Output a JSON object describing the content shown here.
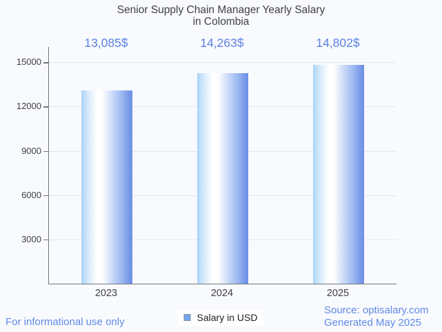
{
  "page": {
    "background": "#f8fafd"
  },
  "title": {
    "line1": "Senior Supply Chain Manager Yearly Salary",
    "line2": "in Colombia"
  },
  "legend": {
    "label": "Salary in USD",
    "marker_color": "#72a6f0"
  },
  "footer": {
    "disclaimer": "For informational use only",
    "source": "Source: optisalary.com",
    "generated": "Generated May 2025"
  },
  "colors": {
    "value_label": "#5b80e1",
    "footer_text": "#6189e8",
    "axis_line": "#73767a",
    "gridline": "#e4e6eb",
    "tick_label": "#3f4043",
    "bar_gradient_left": "#a9d3f8",
    "bar_gradient_middle": "#ffffff",
    "bar_gradient_right": "#6b8fe7"
  },
  "chart_data": {
    "type": "bar",
    "title": "Senior Supply Chain Manager Yearly Salary in Colombia",
    "categories": [
      "2023",
      "2024",
      "2025"
    ],
    "series": [
      {
        "name": "Salary in USD",
        "values": [
          13085,
          14263,
          14802
        ]
      }
    ],
    "value_labels": [
      "13,085$",
      "14,263$",
      "14,802$"
    ],
    "xlabel": "",
    "ylabel": "",
    "ylim": [
      0,
      16040
    ],
    "yticks": [
      3000,
      6000,
      9000,
      12000,
      15000
    ],
    "ytick_labels": [
      "3000",
      "6000",
      "9000",
      "12000",
      "15000"
    ],
    "grid": true,
    "legend_position": "bottom",
    "bar_orientation": "vertical"
  }
}
